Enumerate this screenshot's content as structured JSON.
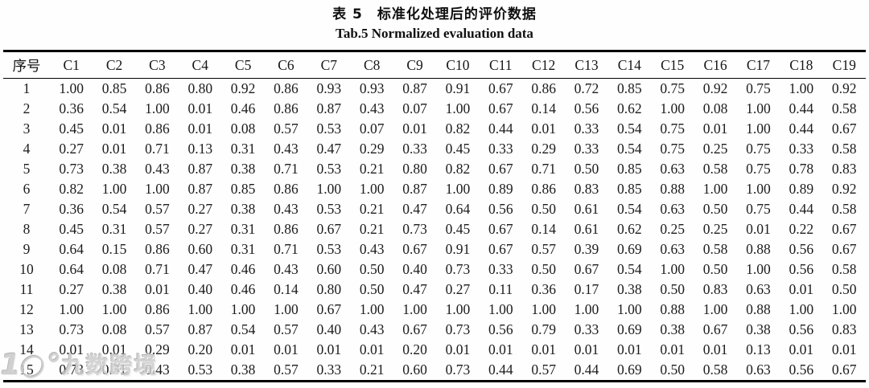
{
  "title_cn": "表 5　标准化处理后的评价数据",
  "title_en": "Tab.5 Normalized evaluation data",
  "watermark": {
    "logo": "1○°",
    "text": "九数跨境"
  },
  "table": {
    "columns": [
      "序号",
      "C1",
      "C2",
      "C3",
      "C4",
      "C5",
      "C6",
      "C7",
      "C8",
      "C9",
      "C10",
      "C11",
      "C12",
      "C13",
      "C14",
      "C15",
      "C16",
      "C17",
      "C18",
      "C19"
    ],
    "rows": [
      [
        "1",
        "1.00",
        "0.85",
        "0.86",
        "0.80",
        "0.92",
        "0.86",
        "0.93",
        "0.93",
        "0.87",
        "0.91",
        "0.67",
        "0.86",
        "0.72",
        "0.85",
        "0.75",
        "0.92",
        "0.75",
        "1.00",
        "0.92"
      ],
      [
        "2",
        "0.36",
        "0.54",
        "1.00",
        "0.01",
        "0.46",
        "0.86",
        "0.87",
        "0.43",
        "0.07",
        "1.00",
        "0.67",
        "0.14",
        "0.56",
        "0.62",
        "1.00",
        "0.08",
        "1.00",
        "0.44",
        "0.58"
      ],
      [
        "3",
        "0.45",
        "0.01",
        "0.86",
        "0.01",
        "0.08",
        "0.57",
        "0.53",
        "0.07",
        "0.01",
        "0.82",
        "0.44",
        "0.01",
        "0.33",
        "0.54",
        "0.75",
        "0.01",
        "1.00",
        "0.44",
        "0.67"
      ],
      [
        "4",
        "0.27",
        "0.01",
        "0.71",
        "0.13",
        "0.31",
        "0.43",
        "0.47",
        "0.29",
        "0.33",
        "0.45",
        "0.33",
        "0.29",
        "0.33",
        "0.54",
        "0.75",
        "0.25",
        "0.75",
        "0.33",
        "0.58"
      ],
      [
        "5",
        "0.73",
        "0.38",
        "0.43",
        "0.87",
        "0.38",
        "0.71",
        "0.53",
        "0.21",
        "0.80",
        "0.82",
        "0.67",
        "0.71",
        "0.50",
        "0.85",
        "0.63",
        "0.58",
        "0.75",
        "0.78",
        "0.83"
      ],
      [
        "6",
        "0.82",
        "1.00",
        "1.00",
        "0.87",
        "0.85",
        "0.86",
        "1.00",
        "1.00",
        "0.87",
        "1.00",
        "0.89",
        "0.86",
        "0.83",
        "0.85",
        "0.88",
        "1.00",
        "1.00",
        "0.89",
        "0.92"
      ],
      [
        "7",
        "0.36",
        "0.54",
        "0.57",
        "0.27",
        "0.38",
        "0.43",
        "0.53",
        "0.21",
        "0.47",
        "0.64",
        "0.56",
        "0.50",
        "0.61",
        "0.54",
        "0.63",
        "0.50",
        "0.75",
        "0.44",
        "0.58"
      ],
      [
        "8",
        "0.45",
        "0.31",
        "0.57",
        "0.27",
        "0.31",
        "0.86",
        "0.67",
        "0.21",
        "0.73",
        "0.45",
        "0.67",
        "0.14",
        "0.61",
        "0.62",
        "0.25",
        "0.25",
        "0.01",
        "0.22",
        "0.67"
      ],
      [
        "9",
        "0.64",
        "0.15",
        "0.86",
        "0.60",
        "0.31",
        "0.71",
        "0.53",
        "0.43",
        "0.67",
        "0.91",
        "0.67",
        "0.57",
        "0.39",
        "0.69",
        "0.63",
        "0.58",
        "0.88",
        "0.56",
        "0.67"
      ],
      [
        "10",
        "0.64",
        "0.08",
        "0.71",
        "0.47",
        "0.46",
        "0.43",
        "0.60",
        "0.50",
        "0.40",
        "0.73",
        "0.33",
        "0.50",
        "0.67",
        "0.54",
        "1.00",
        "0.50",
        "1.00",
        "0.56",
        "0.58"
      ],
      [
        "11",
        "0.27",
        "0.38",
        "0.01",
        "0.40",
        "0.46",
        "0.14",
        "0.80",
        "0.50",
        "0.47",
        "0.27",
        "0.11",
        "0.36",
        "0.17",
        "0.38",
        "0.50",
        "0.83",
        "0.63",
        "0.01",
        "0.50"
      ],
      [
        "12",
        "1.00",
        "1.00",
        "0.86",
        "1.00",
        "1.00",
        "1.00",
        "0.67",
        "1.00",
        "1.00",
        "1.00",
        "1.00",
        "1.00",
        "1.00",
        "1.00",
        "0.88",
        "1.00",
        "0.88",
        "1.00",
        "1.00"
      ],
      [
        "13",
        "0.73",
        "0.08",
        "0.57",
        "0.87",
        "0.54",
        "0.57",
        "0.40",
        "0.43",
        "0.67",
        "0.73",
        "0.56",
        "0.79",
        "0.33",
        "0.69",
        "0.38",
        "0.67",
        "0.38",
        "0.56",
        "0.83"
      ],
      [
        "14",
        "0.01",
        "0.01",
        "0.29",
        "0.20",
        "0.01",
        "0.01",
        "0.01",
        "0.01",
        "0.20",
        "0.01",
        "0.01",
        "0.01",
        "0.01",
        "0.01",
        "0.01",
        "0.01",
        "0.13",
        "0.01",
        "0.01"
      ],
      [
        "15",
        "0.73",
        "0.31",
        "0.43",
        "0.53",
        "0.38",
        "0.57",
        "0.33",
        "0.21",
        "0.60",
        "0.73",
        "0.44",
        "0.57",
        "0.44",
        "0.69",
        "0.50",
        "0.58",
        "0.63",
        "0.56",
        "0.67"
      ]
    ]
  }
}
